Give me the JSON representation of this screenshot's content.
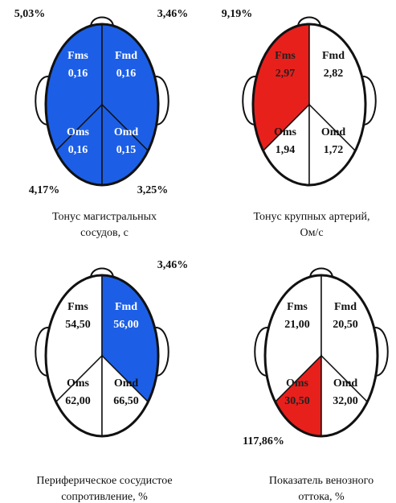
{
  "heads": [
    {
      "quadrants": [
        {
          "label": "Fms",
          "value": "0,16",
          "color": "#1c5fe6",
          "text_color": "#ffffff"
        },
        {
          "label": "Fmd",
          "value": "0,16",
          "color": "#1c5fe6",
          "text_color": "#ffffff"
        },
        {
          "label": "Oms",
          "value": "0,16",
          "color": "#1c5fe6",
          "text_color": "#ffffff"
        },
        {
          "label": "Omd",
          "value": "0,15",
          "color": "#1c5fe6",
          "text_color": "#ffffff"
        }
      ],
      "corners": {
        "top_left": "5,03%",
        "top_right": "3,46%",
        "bottom_left": "4,17%",
        "bottom_right": "3,25%"
      },
      "caption": [
        "Тонус магистральных",
        "сосудов, с"
      ]
    },
    {
      "quadrants": [
        {
          "label": "Fms",
          "value": "2,97",
          "color": "#e8201c",
          "text_color": "#222222"
        },
        {
          "label": "Fmd",
          "value": "2,82",
          "color": "#ffffff",
          "text_color": "#111111"
        },
        {
          "label": "Oms",
          "value": "1,94",
          "color": "#ffffff",
          "text_color": "#111111"
        },
        {
          "label": "Omd",
          "value": "1,72",
          "color": "#ffffff",
          "text_color": "#111111"
        }
      ],
      "corners": {
        "top_left": "9,19%"
      },
      "caption": [
        "Тонус крупных артерий,",
        "Ом/с"
      ]
    },
    {
      "quadrants": [
        {
          "label": "Fms",
          "value": "54,50",
          "color": "#ffffff",
          "text_color": "#111111"
        },
        {
          "label": "Fmd",
          "value": "56,00",
          "color": "#1c5fe6",
          "text_color": "#ffffff"
        },
        {
          "label": "Oms",
          "value": "62,00",
          "color": "#ffffff",
          "text_color": "#111111"
        },
        {
          "label": "Omd",
          "value": "66,50",
          "color": "#ffffff",
          "text_color": "#111111"
        }
      ],
      "corners": {
        "top_right": "3,46%"
      },
      "caption": [
        "Периферическое сосудистое",
        "сопротивление, %"
      ]
    },
    {
      "quadrants": [
        {
          "label": "Fms",
          "value": "21,00",
          "color": "#ffffff",
          "text_color": "#111111"
        },
        {
          "label": "Fmd",
          "value": "20,50",
          "color": "#ffffff",
          "text_color": "#111111"
        },
        {
          "label": "Oms",
          "value": "30,50",
          "color": "#e8201c",
          "text_color": "#222222"
        },
        {
          "label": "Omd",
          "value": "32,00",
          "color": "#ffffff",
          "text_color": "#111111"
        }
      ],
      "corners": {
        "bottom_left": "117,86%"
      },
      "caption": [
        "Показатель венозного",
        "оттока, %"
      ]
    }
  ]
}
